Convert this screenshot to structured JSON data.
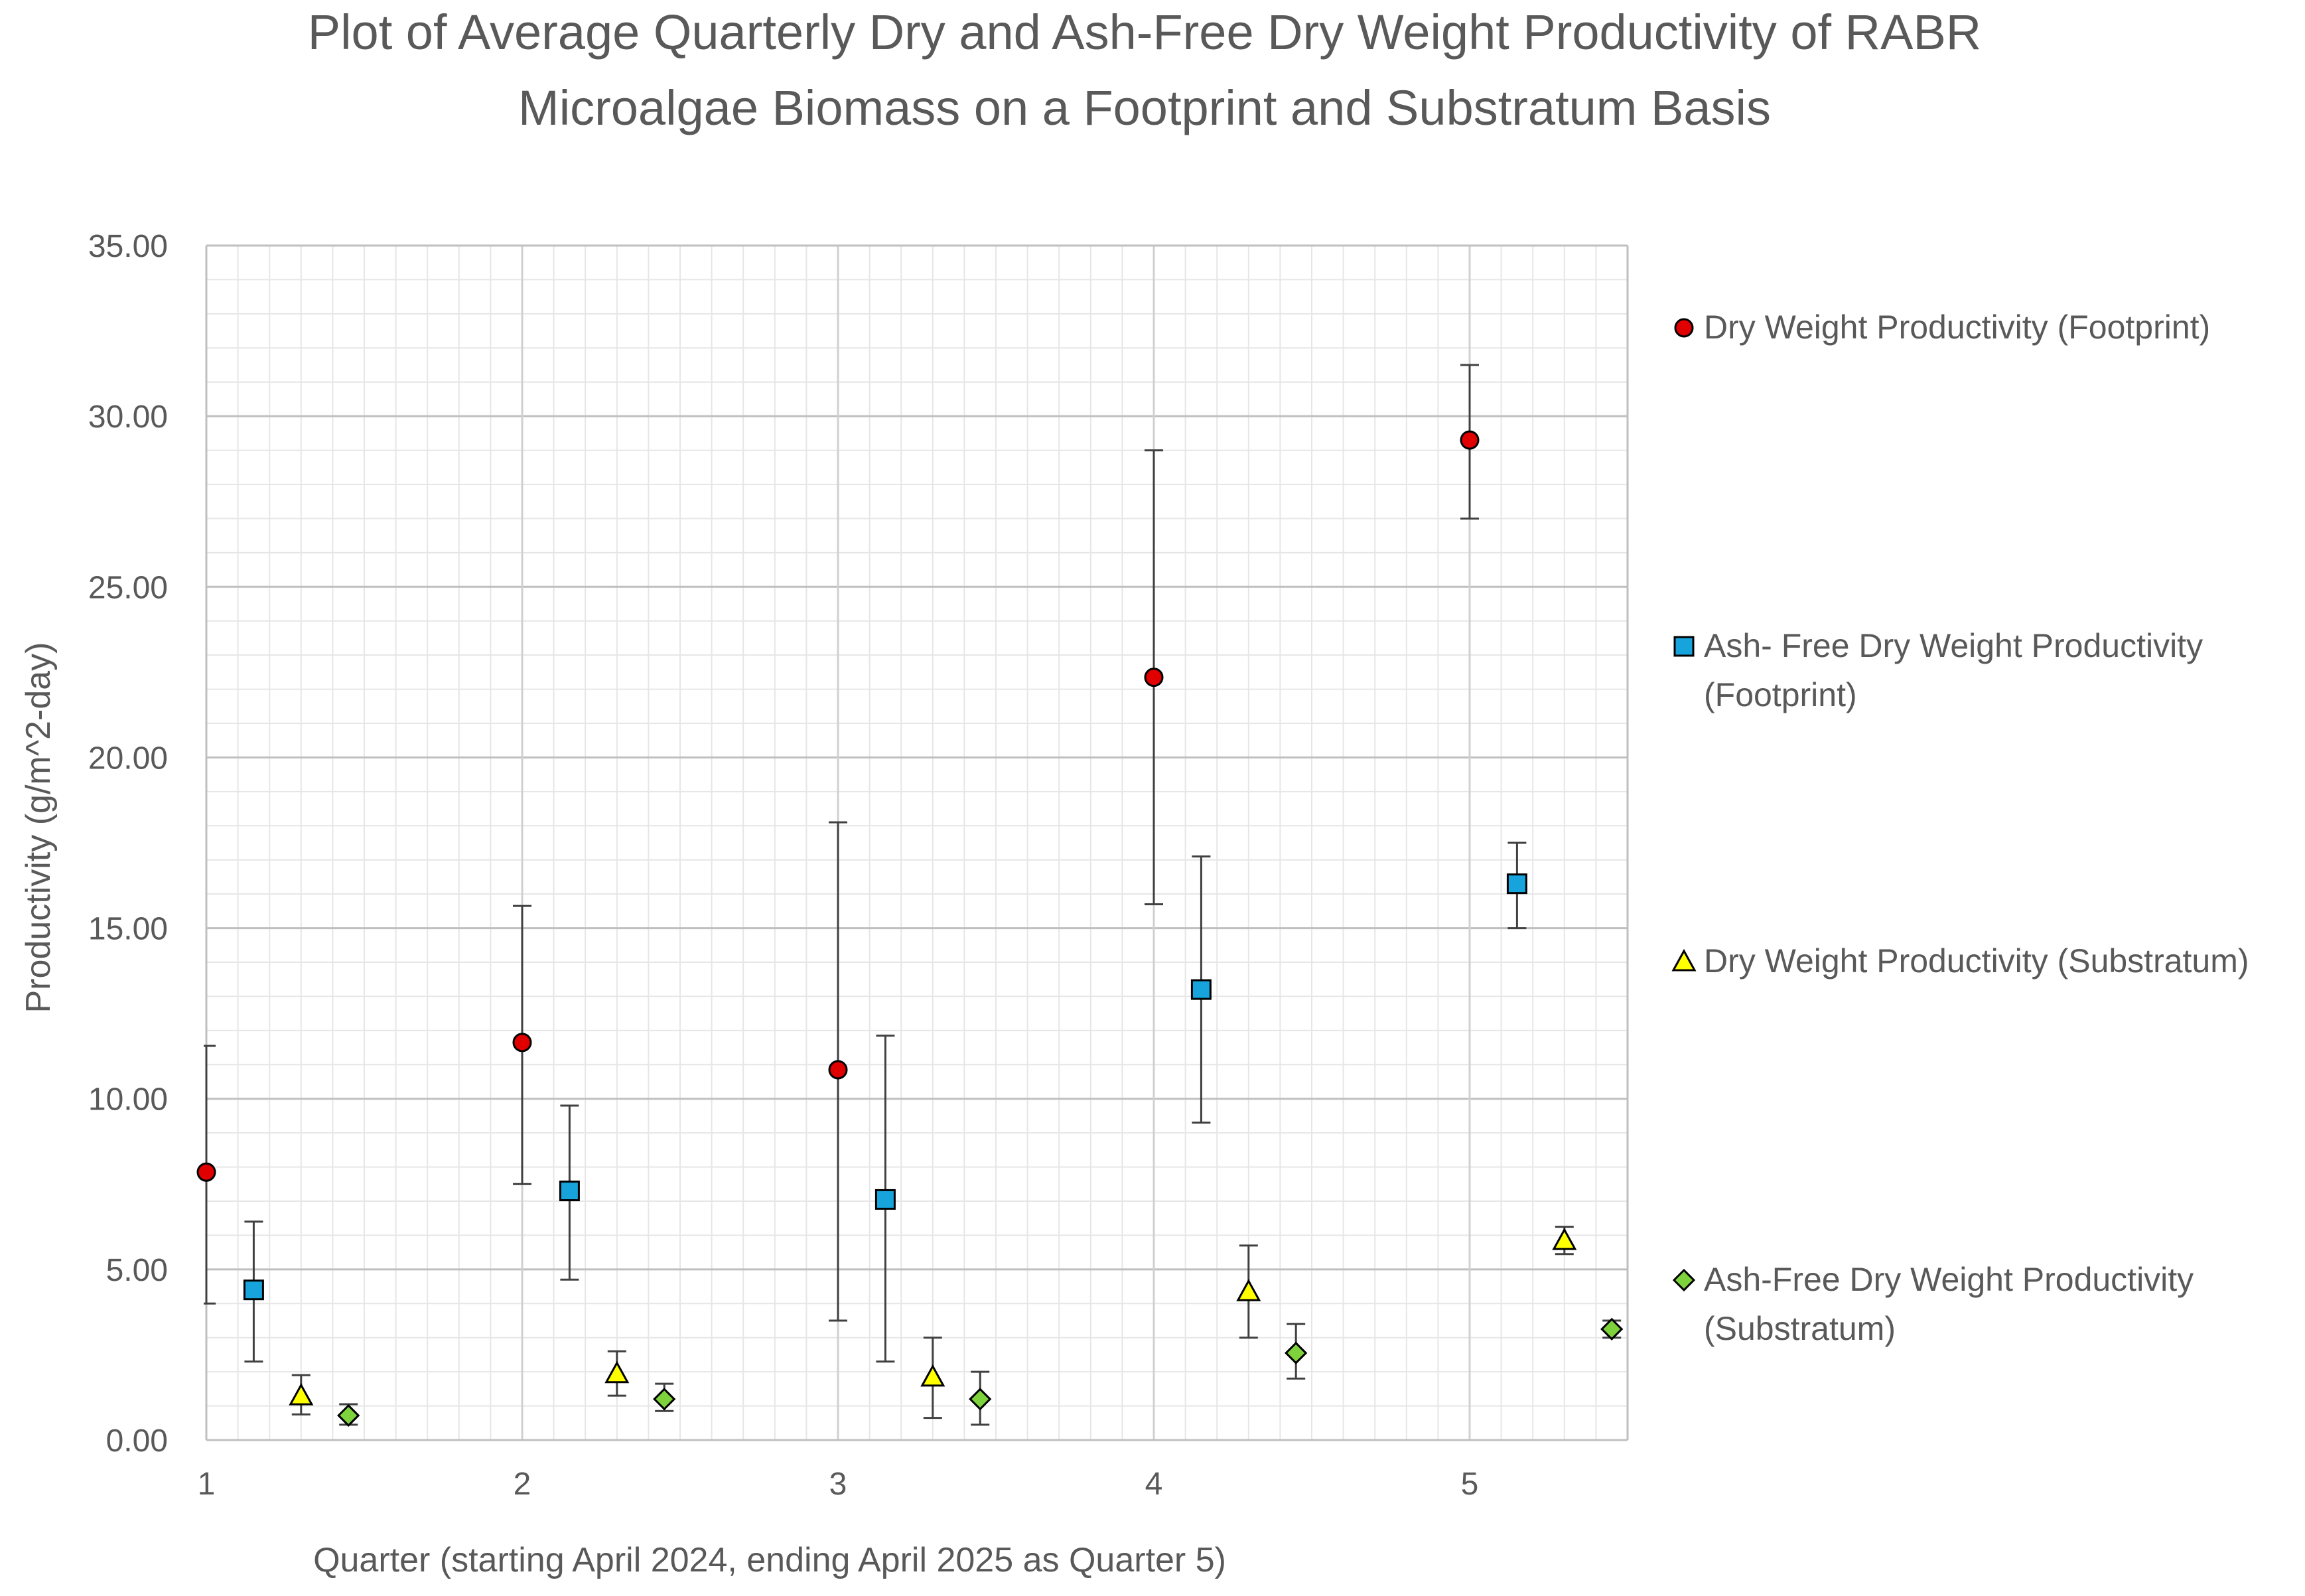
{
  "chart_data": {
    "type": "scatter",
    "title": [
      "Plot of Average Quarterly Dry and Ash-Free Dry Weight Productivity of RABR",
      "Microalgae Biomass on a Footprint and Substratum Basis"
    ],
    "xlabel": "Quarter (starting April 2024, ending April 2025 as Quarter 5)",
    "ylabel": "Productivity (g/m^2-day)",
    "xlim": [
      1,
      5.5
    ],
    "ylim": [
      0,
      35
    ],
    "x_ticks": [
      "1",
      "2",
      "3",
      "4",
      "5"
    ],
    "y_ticks": [
      "0.00",
      "5.00",
      "10.00",
      "15.00",
      "20.00",
      "25.00",
      "30.00",
      "35.00"
    ],
    "grid": true,
    "legend_position": "right",
    "series": [
      {
        "name": "Dry Weight Productivity (Footprint)",
        "legend_lines": [
          "Dry Weight Productivity (Footprint)"
        ],
        "marker": "circle",
        "color": "#e00000",
        "x": [
          1.0,
          2.0,
          3.0,
          4.0,
          5.0
        ],
        "y": [
          7.85,
          11.65,
          10.85,
          22.35,
          29.3
        ],
        "err_low": [
          4.0,
          7.5,
          3.5,
          15.7,
          27.0
        ],
        "err_high": [
          11.55,
          15.65,
          18.1,
          29.0,
          31.5
        ]
      },
      {
        "name": "Ash- Free Dry Weight Productivity (Footprint)",
        "legend_lines": [
          "Ash- Free Dry Weight Productivity",
          "(Footprint)"
        ],
        "marker": "square",
        "color": "#17a3dc",
        "x": [
          1.15,
          2.15,
          3.15,
          4.15,
          5.15
        ],
        "y": [
          4.4,
          7.3,
          7.05,
          13.2,
          16.3
        ],
        "err_low": [
          2.3,
          4.7,
          2.3,
          9.3,
          15.0
        ],
        "err_high": [
          6.4,
          9.8,
          11.85,
          17.1,
          17.5
        ]
      },
      {
        "name": "Dry Weight Productivity (Substratum)",
        "legend_lines": [
          "Dry Weight Productivity (Substratum)"
        ],
        "marker": "triangle",
        "color": "#ffff00",
        "x": [
          1.3,
          2.3,
          3.3,
          4.3,
          5.3
        ],
        "y": [
          1.3,
          1.95,
          1.85,
          4.35,
          5.85
        ],
        "err_low": [
          0.75,
          1.3,
          0.65,
          3.0,
          5.45
        ],
        "err_high": [
          1.9,
          2.6,
          3.0,
          5.7,
          6.25
        ]
      },
      {
        "name": "Ash-Free Dry Weight Productivity (Substratum)",
        "legend_lines": [
          "Ash-Free Dry Weight Productivity",
          "(Substratum)"
        ],
        "marker": "diamond",
        "color": "#7ed23b",
        "x": [
          1.45,
          2.45,
          3.45,
          4.45,
          5.45
        ],
        "y": [
          0.72,
          1.2,
          1.2,
          2.55,
          3.25
        ],
        "err_low": [
          0.45,
          0.85,
          0.45,
          1.8,
          3.0
        ],
        "err_high": [
          1.05,
          1.65,
          2.0,
          3.4,
          3.5
        ]
      }
    ]
  }
}
